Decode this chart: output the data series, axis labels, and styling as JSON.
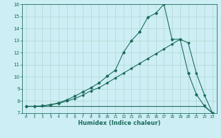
{
  "xlabel": "Humidex (Indice chaleur)",
  "bg_color": "#cdeef5",
  "line_color": "#1a6b5a",
  "grid_color": "#b0d8d0",
  "xlim": [
    -0.5,
    23.5
  ],
  "ylim": [
    7,
    16
  ],
  "xticks": [
    0,
    1,
    2,
    3,
    4,
    5,
    6,
    7,
    8,
    9,
    10,
    11,
    12,
    13,
    14,
    15,
    16,
    17,
    18,
    19,
    20,
    21,
    22,
    23
  ],
  "yticks": [
    7,
    8,
    9,
    10,
    11,
    12,
    13,
    14,
    15,
    16
  ],
  "line1_x": [
    0,
    1,
    2,
    3,
    4,
    5,
    6,
    7,
    8,
    9,
    10,
    11,
    12,
    13,
    14,
    15,
    16,
    17,
    18,
    19,
    20,
    21,
    22,
    23
  ],
  "line1_y": [
    7.55,
    7.55,
    7.55,
    7.55,
    7.55,
    7.55,
    7.55,
    7.55,
    7.55,
    7.55,
    7.55,
    7.55,
    7.55,
    7.55,
    7.55,
    7.55,
    7.55,
    7.55,
    7.55,
    7.55,
    7.55,
    7.55,
    7.55,
    7.0
  ],
  "line2_x": [
    0,
    1,
    2,
    3,
    4,
    5,
    6,
    7,
    8,
    9,
    10,
    11,
    12,
    13,
    14,
    15,
    16,
    17,
    18,
    19,
    20,
    21,
    22,
    23
  ],
  "line2_y": [
    7.55,
    7.55,
    7.6,
    7.7,
    7.8,
    8.0,
    8.2,
    8.5,
    8.85,
    9.1,
    9.5,
    9.9,
    10.3,
    10.7,
    11.1,
    11.5,
    11.9,
    12.3,
    12.7,
    13.1,
    12.8,
    10.3,
    8.5,
    7.0
  ],
  "line3_x": [
    0,
    1,
    2,
    3,
    4,
    5,
    6,
    7,
    8,
    9,
    10,
    11,
    12,
    13,
    14,
    15,
    16,
    17,
    18,
    19,
    20,
    21,
    22,
    23
  ],
  "line3_y": [
    7.55,
    7.55,
    7.6,
    7.7,
    7.85,
    8.1,
    8.4,
    8.75,
    9.1,
    9.5,
    10.05,
    10.55,
    12.0,
    13.0,
    13.7,
    14.9,
    15.25,
    16.0,
    13.1,
    13.1,
    10.3,
    8.55,
    7.6,
    7.0
  ]
}
